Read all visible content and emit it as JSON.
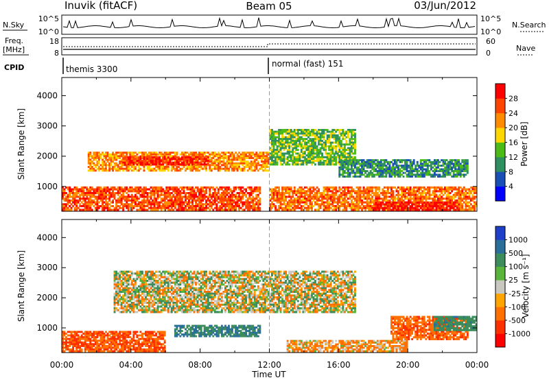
{
  "header": {
    "station": "Inuvik (fitACF)",
    "beam": "Beam 05",
    "date": "03/Jun/2012"
  },
  "panels": {
    "nsky": {
      "label": "N.Sky",
      "right_label": "N.Search",
      "left_ticks": [
        "10^5",
        "10^0"
      ],
      "right_ticks": [
        "10^5",
        "10^0"
      ]
    },
    "freq": {
      "label_line1": "Freq.",
      "label_line2": "[MHz]",
      "right_label": "Nave",
      "left_ticks": [
        "18",
        "8"
      ],
      "right_ticks": [
        "60",
        "0"
      ]
    },
    "cpid": {
      "label": "CPID",
      "segments": [
        {
          "start_hour": 0,
          "text": "themis 3300"
        },
        {
          "start_hour": 12,
          "text": "normal (fast) 151"
        }
      ]
    }
  },
  "chart_data": [
    {
      "type": "heatmap",
      "name": "power",
      "ylabel": "Slant Range [km]",
      "xlabel": "",
      "x_range_hours": [
        0,
        24
      ],
      "y_range_km": [
        180,
        4600
      ],
      "yticks": [
        1000,
        2000,
        3000,
        4000
      ],
      "colorbar": {
        "label": "Power [dB]",
        "ticks": [
          "4",
          "8",
          "12",
          "16",
          "20",
          "24",
          "28"
        ],
        "colors": [
          "#0000ff",
          "#1a4fb5",
          "#2f8f5f",
          "#4cbb17",
          "#ffd700",
          "#ff8c00",
          "#ff4500",
          "#ff0000"
        ]
      },
      "bands": [
        {
          "t0": 1.5,
          "t1": 12.0,
          "km0": 1500,
          "km1": 2150,
          "value": 22
        },
        {
          "t0": 3.5,
          "t1": 8.5,
          "km0": 1700,
          "km1": 2000,
          "value": 28
        },
        {
          "t0": 12.0,
          "t1": 17.0,
          "km0": 1700,
          "km1": 2900,
          "value": 14
        },
        {
          "t0": 16.0,
          "t1": 23.5,
          "km0": 1300,
          "km1": 1900,
          "value": 10
        },
        {
          "t0": 0.0,
          "t1": 11.5,
          "km0": 200,
          "km1": 1000,
          "value": 26
        },
        {
          "t0": 12.0,
          "t1": 24.0,
          "km0": 200,
          "km1": 1000,
          "value": 24
        },
        {
          "t0": 18.0,
          "t1": 23.0,
          "km0": 200,
          "km1": 500,
          "value": 30
        }
      ]
    },
    {
      "type": "heatmap",
      "name": "velocity",
      "ylabel": "Slant Range [km]",
      "xlabel": "Time UT",
      "x_range_hours": [
        0,
        24
      ],
      "y_range_km": [
        180,
        4600
      ],
      "yticks": [
        1000,
        2000,
        3000,
        4000
      ],
      "xticks": [
        "00:00",
        "04:00",
        "08:00",
        "12:00",
        "16:00",
        "20:00",
        "00:00"
      ],
      "colorbar": {
        "label": "Velocity [m s⁻¹]",
        "ticks": [
          "1000",
          "500",
          "100",
          "25",
          "-25",
          "-100",
          "-500",
          "-1000"
        ],
        "colors": [
          "#1e40c8",
          "#2a6e9a",
          "#3c8c5c",
          "#5ab43c",
          "#c8c8c0",
          "#ffa500",
          "#ff7000",
          "#ff3000",
          "#ff0000"
        ]
      },
      "bands": [
        {
          "t0": 3.0,
          "t1": 17.0,
          "km0": 1500,
          "km1": 2900,
          "value": 0
        },
        {
          "t0": 0.0,
          "t1": 6.0,
          "km0": 200,
          "km1": 900,
          "value": -300
        },
        {
          "t0": 6.5,
          "t1": 11.5,
          "km0": 700,
          "km1": 1100,
          "value": 300
        },
        {
          "t0": 13.0,
          "t1": 20.0,
          "km0": 200,
          "km1": 600,
          "value": -80
        },
        {
          "t0": 19.0,
          "t1": 23.5,
          "km0": 600,
          "km1": 1400,
          "value": -250
        },
        {
          "t0": 21.5,
          "t1": 24.0,
          "km0": 900,
          "km1": 1400,
          "value": 200
        }
      ]
    }
  ]
}
